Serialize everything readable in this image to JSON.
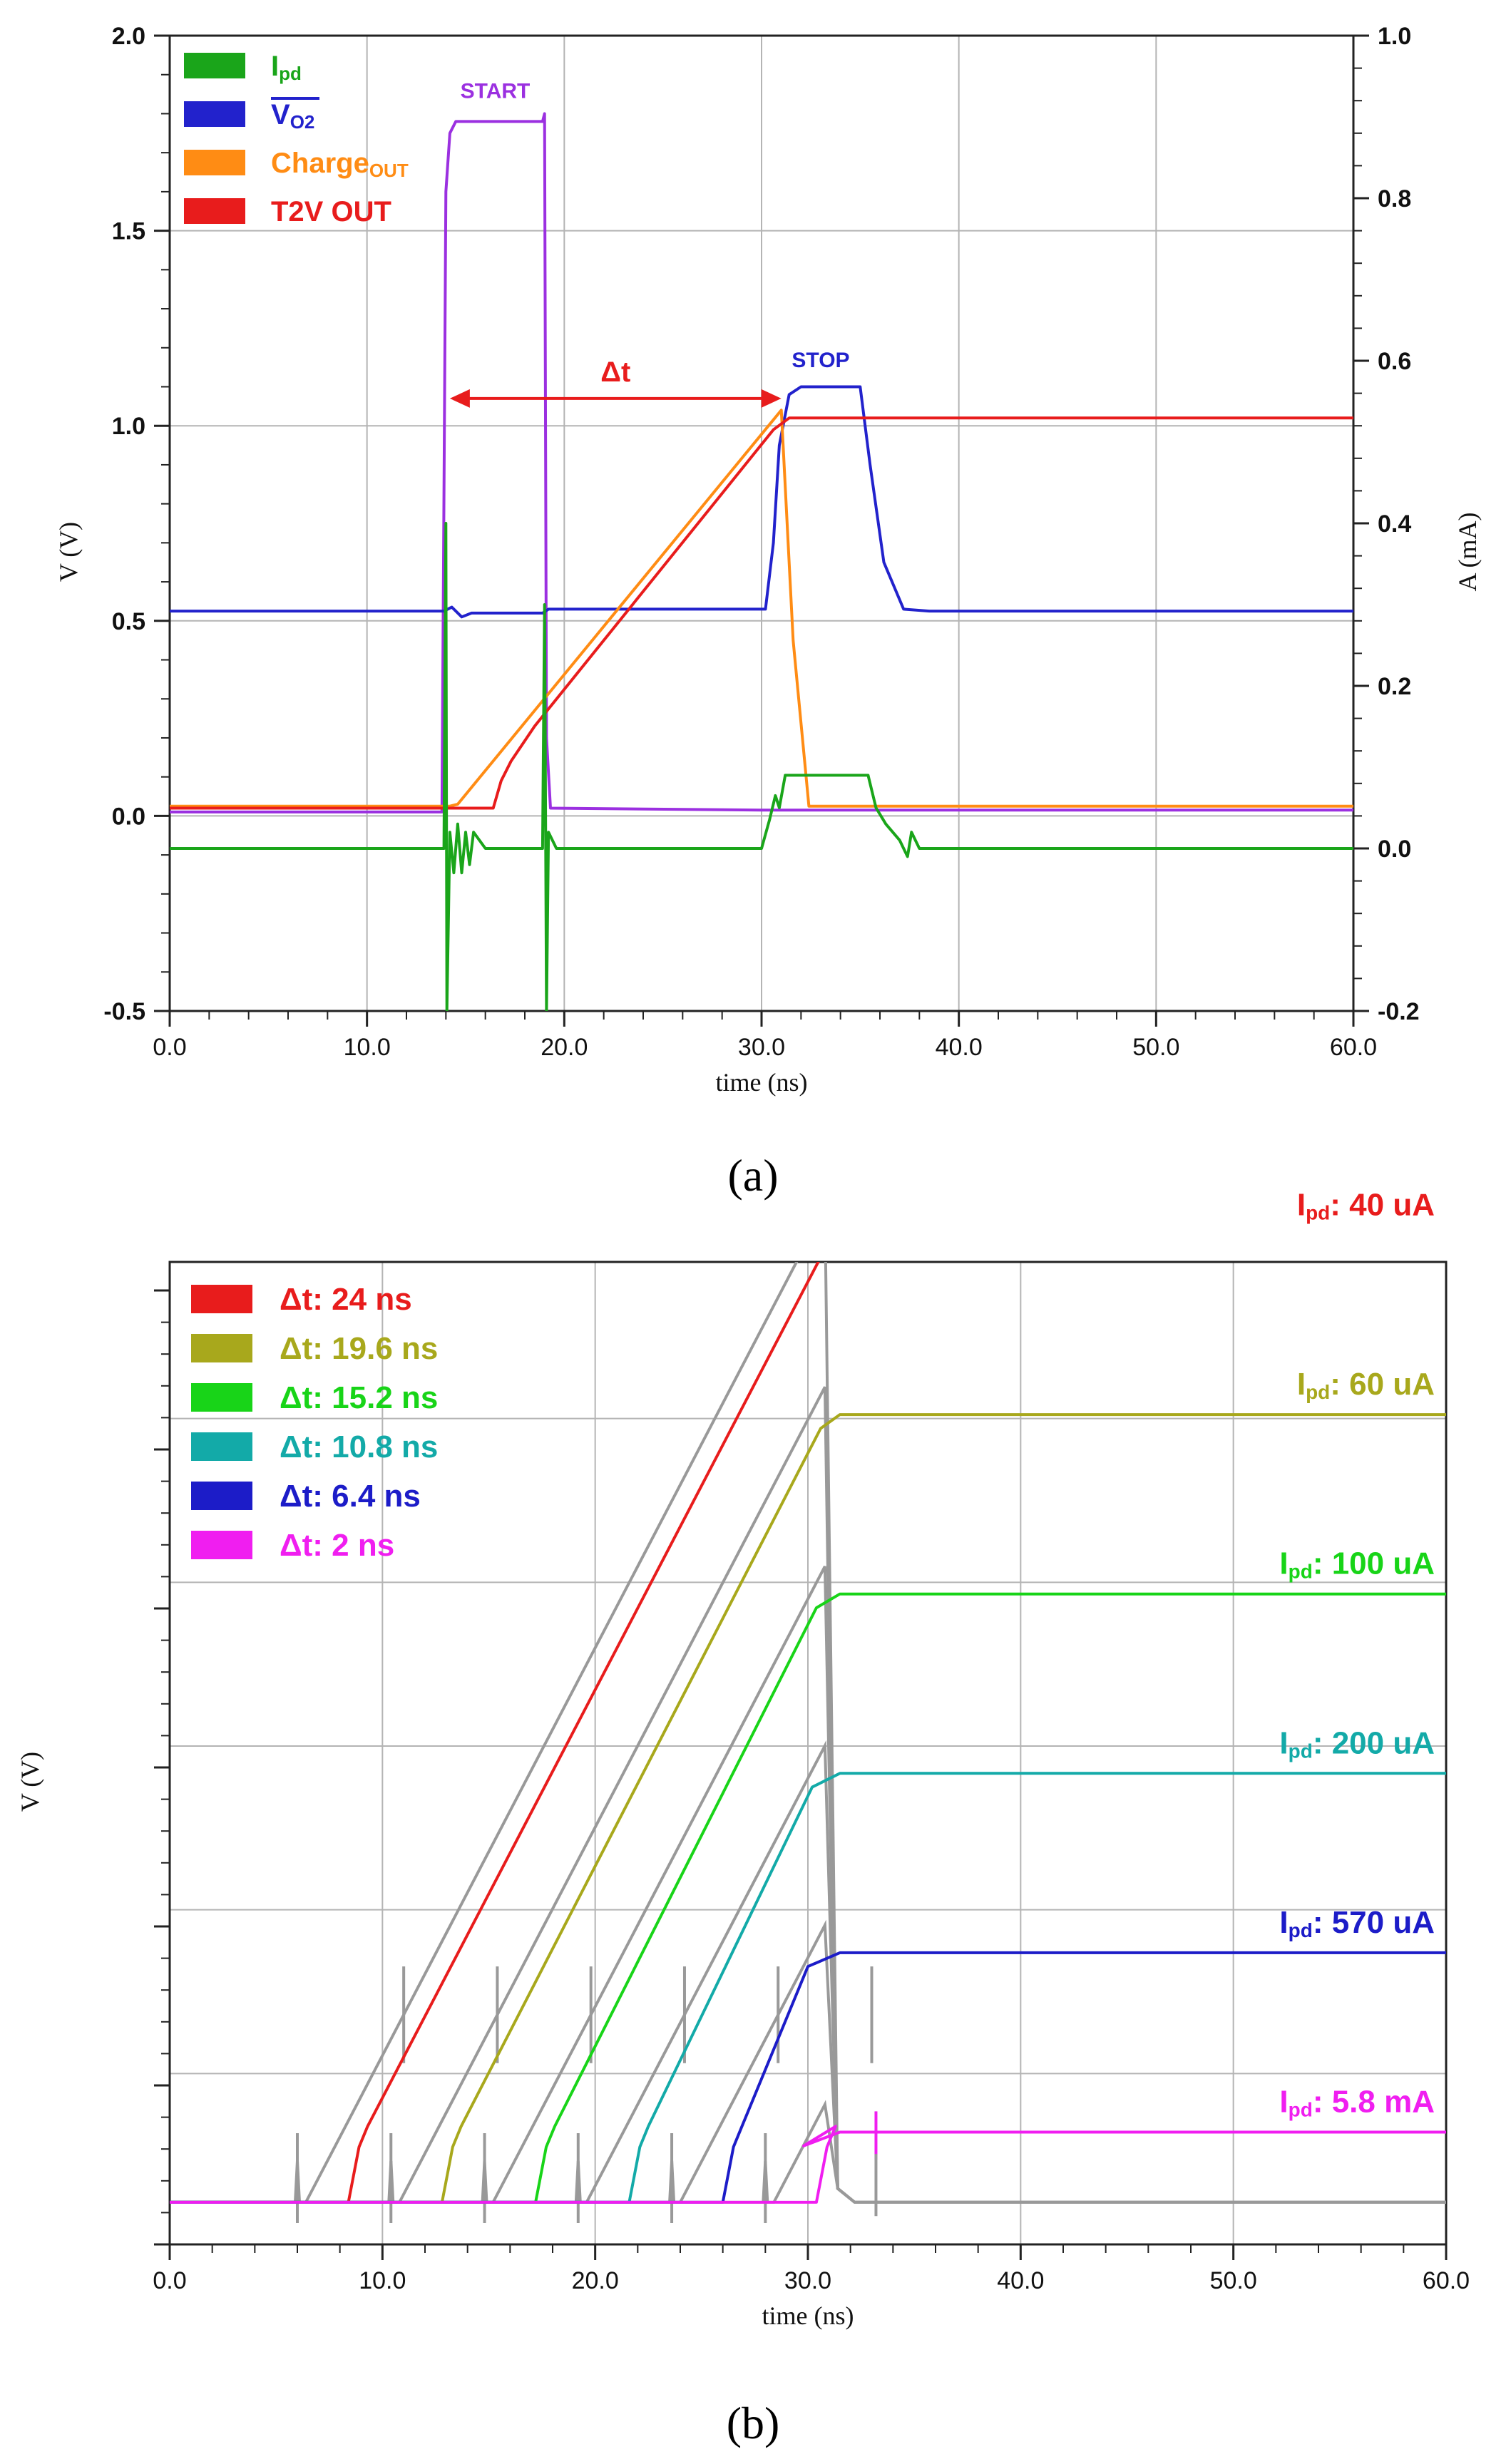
{
  "colors": {
    "ipd": "#1aa51a",
    "vo2": "#2222cc",
    "charge": "#ff8c14",
    "t2v": "#e81c1c",
    "start": "#9b30e0",
    "grid": "#b4b4b4",
    "gray_trace": "#999999",
    "olive": "#a8a81c",
    "green": "#18d418",
    "teal": "#13aaa8",
    "blue": "#1c1cc8",
    "magenta": "#f01ef0"
  },
  "captions": {
    "a": "(a)",
    "b": "(b)"
  },
  "chart_data": [
    {
      "id": "a",
      "type": "line",
      "xlabel": "time (ns)",
      "ylabel": "V (V)",
      "y2label": "A (mA)",
      "xlim": [
        0,
        60
      ],
      "ylim": [
        -0.5,
        2.0
      ],
      "y2lim": [
        -0.2,
        1.0
      ],
      "x_ticks": [
        "0.0",
        "10.0",
        "20.0",
        "30.0",
        "40.0",
        "50.0",
        "60.0"
      ],
      "y_ticks": [
        "-0.5",
        "0.0",
        "0.5",
        "1.0",
        "1.5",
        "2.0"
      ],
      "y2_ticks": [
        "-0.2",
        "0.0",
        "0.2",
        "0.4",
        "0.6",
        "0.8",
        "1.0"
      ],
      "grid": true,
      "legend_position": "top-left",
      "legend": [
        {
          "main": "I",
          "sub": "pd",
          "color": "#1aa51a"
        },
        {
          "main": "V",
          "sub": "O2",
          "color": "#2222cc",
          "overline": true
        },
        {
          "main": "Charge",
          "sub": "OUT",
          "color": "#ff8c14"
        },
        {
          "main": "T2V OUT",
          "sub": "",
          "color": "#e81c1c"
        }
      ],
      "annotations": {
        "start": "START",
        "stop": "STOP",
        "dt": "Δt"
      },
      "dt_arrow": {
        "x_from": 14.2,
        "x_to": 31.0,
        "y": 1.07
      },
      "series": [
        {
          "name": "START",
          "color": "#9b30e0",
          "x": [
            0,
            13.8,
            14.0,
            14.2,
            14.5,
            18.9,
            19.0,
            19.1,
            19.3,
            30,
            60
          ],
          "y": [
            0.01,
            0.01,
            1.6,
            1.75,
            1.78,
            1.78,
            1.8,
            0.2,
            0.02,
            0.015,
            0.015
          ]
        },
        {
          "name": "V O2",
          "color": "#2222cc",
          "x": [
            0,
            13.9,
            14.3,
            14.8,
            15.3,
            18.9,
            19.2,
            30.2,
            30.6,
            30.9,
            31.4,
            32,
            35,
            35.5,
            36.2,
            37.2,
            38.5,
            60
          ],
          "y": [
            0.525,
            0.525,
            0.535,
            0.51,
            0.52,
            0.52,
            0.53,
            0.53,
            0.7,
            0.95,
            1.08,
            1.1,
            1.1,
            0.9,
            0.65,
            0.53,
            0.525,
            0.525
          ]
        },
        {
          "name": "Charge OUT",
          "color": "#ff8c14",
          "x": [
            0,
            14.2,
            14.6,
            31.0,
            31.6,
            32.4,
            60
          ],
          "y": [
            0.025,
            0.025,
            0.03,
            1.04,
            0.45,
            0.025,
            0.025
          ]
        },
        {
          "name": "T2V OUT",
          "color": "#e81c1c",
          "x": [
            0,
            16.4,
            16.8,
            17.3,
            18.5,
            30.6,
            31.4,
            60
          ],
          "y": [
            0.02,
            0.02,
            0.09,
            0.14,
            0.23,
            0.99,
            1.02,
            1.02
          ]
        },
        {
          "name": "Ipd",
          "color": "#1aa51a",
          "axis": "y2",
          "x": [
            0,
            13.9,
            14.0,
            14.05,
            14.2,
            14.4,
            14.6,
            14.8,
            15.0,
            15.2,
            15.4,
            16,
            18.9,
            19.0,
            19.1,
            19.2,
            19.6,
            30.0,
            30.4,
            30.7,
            30.9,
            31.2,
            35.4,
            35.8,
            36.3,
            37.0,
            37.4,
            37.6,
            38,
            60
          ],
          "y": [
            0.0,
            0.0,
            0.4,
            -0.2,
            0.02,
            -0.03,
            0.03,
            -0.03,
            0.02,
            -0.02,
            0.02,
            0.0,
            0.0,
            0.3,
            -0.2,
            0.02,
            0.0,
            0.0,
            0.035,
            0.065,
            0.05,
            0.09,
            0.09,
            0.05,
            0.03,
            0.01,
            -0.01,
            0.02,
            0.0,
            0.0
          ]
        }
      ]
    },
    {
      "id": "b",
      "type": "line",
      "xlabel": "time (ns)",
      "ylabel": "V (V)",
      "xlim": [
        0,
        60
      ],
      "x_ticks": [
        "0.0",
        "10.0",
        "20.0",
        "30.0",
        "40.0",
        "50.0",
        "60.0"
      ],
      "grid": true,
      "legend_position": "top-left",
      "legend": [
        {
          "label": "Δt:  24  ns",
          "color": "#e81c1c"
        },
        {
          "label": "Δt: 19.6 ns",
          "color": "#a8a81c"
        },
        {
          "label": "Δt: 15.2 ns",
          "color": "#18d418"
        },
        {
          "label": "Δt: 10.8 ns",
          "color": "#13aaa8"
        },
        {
          "label": "Δt:  6.4  ns",
          "color": "#1c1cc8"
        },
        {
          "label": "Δt:   2   ns",
          "color": "#f01ef0"
        }
      ],
      "right_labels": [
        {
          "main": "I",
          "sub": "pd",
          "text": ":  40  uA",
          "color": "#e81c1c"
        },
        {
          "main": "I",
          "sub": "pd",
          "text": ":  60  uA",
          "color": "#a8a81c"
        },
        {
          "main": "I",
          "sub": "pd",
          "text": ": 100 uA",
          "color": "#18d418"
        },
        {
          "main": "I",
          "sub": "pd",
          "text": ": 200 uA",
          "color": "#13aaa8"
        },
        {
          "main": "I",
          "sub": "pd",
          "text": ": 570 uA",
          "color": "#1c1cc8"
        },
        {
          "main": "I",
          "sub": "pd",
          "text": ": 5.8 mA",
          "color": "#f01ef0"
        }
      ],
      "series": [
        {
          "dt": 24.0,
          "start": 6.0,
          "color": "#e81c1c"
        },
        {
          "dt": 19.6,
          "start": 10.4,
          "color": "#a8a81c"
        },
        {
          "dt": 15.2,
          "start": 14.8,
          "color": "#18d418"
        },
        {
          "dt": 10.8,
          "start": 19.2,
          "color": "#13aaa8"
        },
        {
          "dt": 6.4,
          "start": 23.6,
          "color": "#1c1cc8"
        },
        {
          "dt": 2.0,
          "start": 28.0,
          "color": "#f01ef0"
        }
      ]
    }
  ]
}
